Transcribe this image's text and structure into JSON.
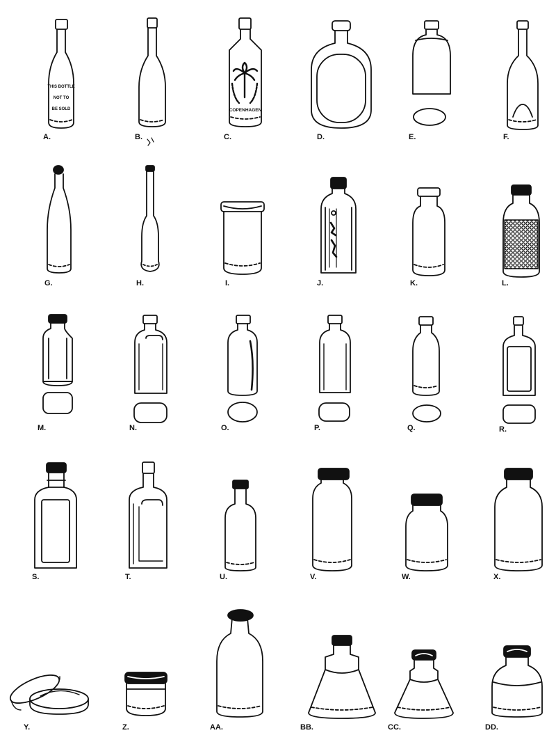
{
  "ink_color": "#111111",
  "paper_color": "#ffffff",
  "figures": [
    {
      "label": "A.",
      "embossing": [
        "THIS BOTTLE",
        "NOT TO",
        "BE SOLD"
      ]
    },
    {
      "label": "B."
    },
    {
      "label": "C.",
      "embossing": [
        "COPENHAGEN"
      ]
    },
    {
      "label": "D."
    },
    {
      "label": "E."
    },
    {
      "label": "F."
    },
    {
      "label": "G."
    },
    {
      "label": "H."
    },
    {
      "label": "I."
    },
    {
      "label": "J."
    },
    {
      "label": "K."
    },
    {
      "label": "L."
    },
    {
      "label": "M."
    },
    {
      "label": "N."
    },
    {
      "label": "O."
    },
    {
      "label": "P."
    },
    {
      "label": "Q."
    },
    {
      "label": "R."
    },
    {
      "label": "S."
    },
    {
      "label": "T."
    },
    {
      "label": "U."
    },
    {
      "label": "V."
    },
    {
      "label": "W."
    },
    {
      "label": "X."
    },
    {
      "label": "Y."
    },
    {
      "label": "Z."
    },
    {
      "label": "AA."
    },
    {
      "label": "BB."
    },
    {
      "label": "CC."
    },
    {
      "label": "DD."
    }
  ]
}
